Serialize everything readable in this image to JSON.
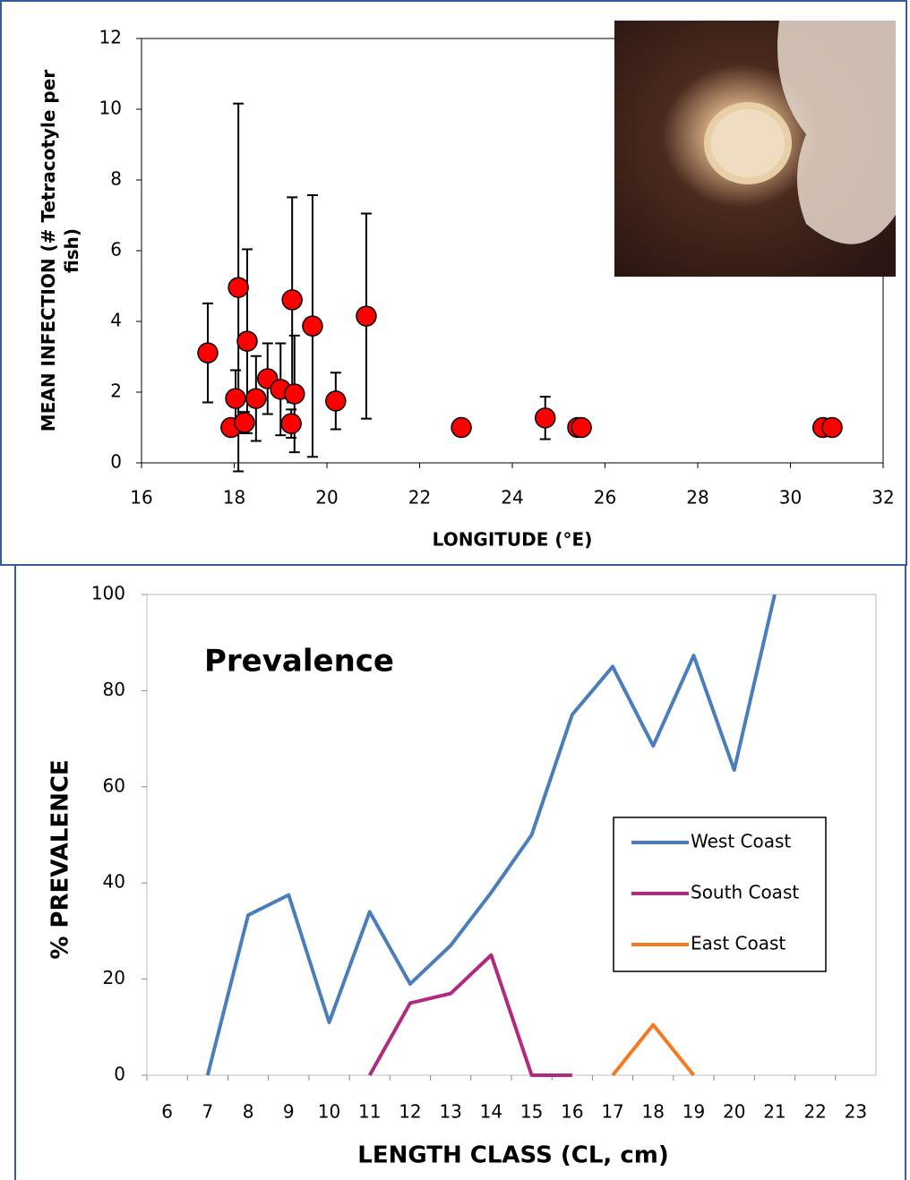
{
  "chart_data": [
    {
      "type": "scatter",
      "ylabel": [
        "MEAN INFECTION (# Tetracotyle per",
        "fish)"
      ],
      "xlabel": "LONGITUDE (°E)",
      "x": [
        17.43,
        17.93,
        18.03,
        18.09,
        18.22,
        18.28,
        18.47,
        18.72,
        19.0,
        19.23,
        19.25,
        19.3,
        19.69,
        20.19,
        20.85,
        22.9,
        24.71,
        25.41,
        25.49,
        30.7,
        30.9
      ],
      "values": [
        3.11,
        1,
        1.82,
        4.96,
        1.14,
        3.44,
        1.82,
        2.38,
        2.08,
        1.11,
        4.61,
        1.95,
        3.87,
        1.75,
        4.15,
        1,
        1.27,
        1,
        1,
        1,
        1
      ],
      "errors": [
        1.4,
        null,
        0.8,
        5.2,
        0.3,
        2.6,
        1.2,
        1.0,
        1.3,
        0.4,
        2.9,
        1.65,
        3.7,
        0.8,
        2.9,
        null,
        0.6,
        null,
        null,
        null,
        null
      ],
      "color": "#ff0000",
      "xlim": [
        16,
        32
      ],
      "xticks": [
        16,
        18,
        20,
        22,
        24,
        26,
        28,
        30,
        32
      ],
      "ylim": [
        0,
        12
      ],
      "yticks": [
        0,
        2,
        4,
        6,
        8,
        10,
        12
      ]
    },
    {
      "type": "line",
      "title": "Prevalence",
      "ylabel": "% PREVALENCE",
      "xlabel": "LENGTH CLASS (CL, cm)",
      "categories": [
        6,
        7,
        8,
        9,
        10,
        11,
        12,
        13,
        14,
        15,
        16,
        17,
        18,
        19,
        20,
        21,
        22,
        23
      ],
      "series": [
        {
          "name": "West Coast",
          "color": "#4a7ebb",
          "values": [
            null,
            0,
            33.3,
            37.5,
            11,
            34,
            19,
            27,
            38,
            50,
            75,
            85,
            68.5,
            87.3,
            63.5,
            100,
            null,
            null
          ]
        },
        {
          "name": "South Coast",
          "color": "#b02a80",
          "values": [
            null,
            null,
            null,
            null,
            null,
            0,
            15,
            17,
            25,
            0,
            0,
            null,
            null,
            null,
            null,
            null,
            null,
            null
          ]
        },
        {
          "name": "East Coast",
          "color": "#f47a20",
          "values": [
            null,
            null,
            null,
            null,
            null,
            null,
            null,
            null,
            null,
            null,
            null,
            0,
            10.5,
            0,
            null,
            null,
            null,
            null
          ]
        }
      ],
      "ylim": [
        0,
        100
      ],
      "yticks": [
        0,
        20,
        40,
        60,
        80,
        100
      ],
      "legend": "center-right"
    }
  ]
}
